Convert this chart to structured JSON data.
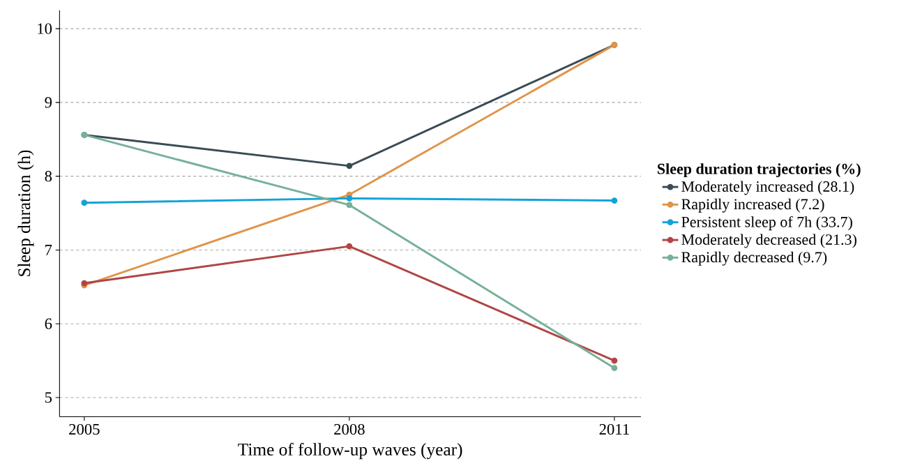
{
  "chart_data": {
    "type": "line",
    "xlabel": "Time of follow-up waves (year)",
    "ylabel": "Sleep duration (h)",
    "legend_title": "Sleep duration trajectories (%)",
    "x": [
      2005,
      2008,
      2011
    ],
    "series": [
      {
        "name": "Moderately increased  (28.1)",
        "color": "#3a4b54",
        "values": [
          8.56,
          8.14,
          9.78
        ]
      },
      {
        "name": "Rapidly increased  (7.2)",
        "color": "#e0944a",
        "values": [
          6.52,
          7.75,
          9.78
        ]
      },
      {
        "name": "Persistent sleep of 7h  (33.7)",
        "color": "#15a2d6",
        "values": [
          7.64,
          7.7,
          7.67
        ]
      },
      {
        "name": "Moderately decreased  (21.3)",
        "color": "#b04545",
        "values": [
          6.55,
          7.05,
          5.5
        ]
      },
      {
        "name": "Rapidly decreased  (9.7)",
        "color": "#78b09a",
        "values": [
          8.56,
          7.61,
          5.4
        ]
      }
    ],
    "xlim": [
      2004.72,
      2011.3
    ],
    "ylim": [
      4.74,
      10.25
    ],
    "xticks": [
      2005,
      2008,
      2011
    ],
    "yticks": [
      5,
      6,
      7,
      8,
      9,
      10
    ],
    "grid": "y",
    "legend": "right",
    "marker": "circle",
    "line_style": "solid"
  }
}
